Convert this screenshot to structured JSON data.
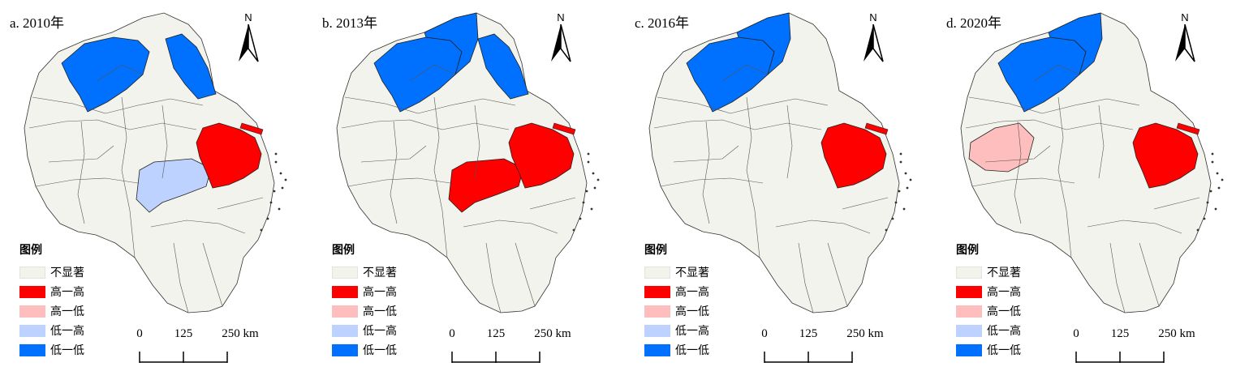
{
  "colors": {
    "not_significant": "#f3f3ed",
    "high_high": "#ff0000",
    "high_low": "#ffbebe",
    "low_high": "#bed2ff",
    "low_low": "#0070ff"
  },
  "north_label": "N",
  "legend": {
    "title": "图例",
    "items": [
      {
        "key": "not_significant",
        "label": "不显著"
      },
      {
        "key": "high_high",
        "label": "高一高"
      },
      {
        "key": "high_low",
        "label": "高一低"
      },
      {
        "key": "low_high",
        "label": "低一高"
      },
      {
        "key": "low_low",
        "label": "低一低"
      }
    ]
  },
  "scale": {
    "tick_0": "0",
    "tick_1": "125",
    "tick_2": "250 km"
  },
  "panels": [
    {
      "title": "a. 2010年",
      "year": 2010,
      "regions": {
        "north_west": "low_low",
        "north_centre": "not_significant",
        "north_east": "low_low",
        "centre_west": "not_significant",
        "centre": "low_high",
        "south_centre": "not_significant",
        "shanghai_area": "high_high"
      }
    },
    {
      "title": "b. 2013年",
      "year": 2013,
      "regions": {
        "north_west": "low_low",
        "north_centre": "low_low",
        "north_east": "low_low",
        "centre_west": "not_significant",
        "centre": "high_high",
        "south_centre": "not_significant",
        "shanghai_area": "high_high"
      }
    },
    {
      "title": "c. 2016年",
      "year": 2016,
      "regions": {
        "north_west": "low_low",
        "north_centre": "low_low",
        "north_east": "not_significant",
        "centre_west": "not_significant",
        "centre": "not_significant",
        "south_centre": "not_significant",
        "shanghai_area": "high_high"
      }
    },
    {
      "title": "d. 2020年",
      "year": 2020,
      "regions": {
        "north_west": "low_low",
        "north_centre": "low_low",
        "north_east": "not_significant",
        "centre_west": "high_low",
        "centre": "not_significant",
        "south_centre": "not_significant",
        "shanghai_area": "high_high"
      }
    }
  ]
}
